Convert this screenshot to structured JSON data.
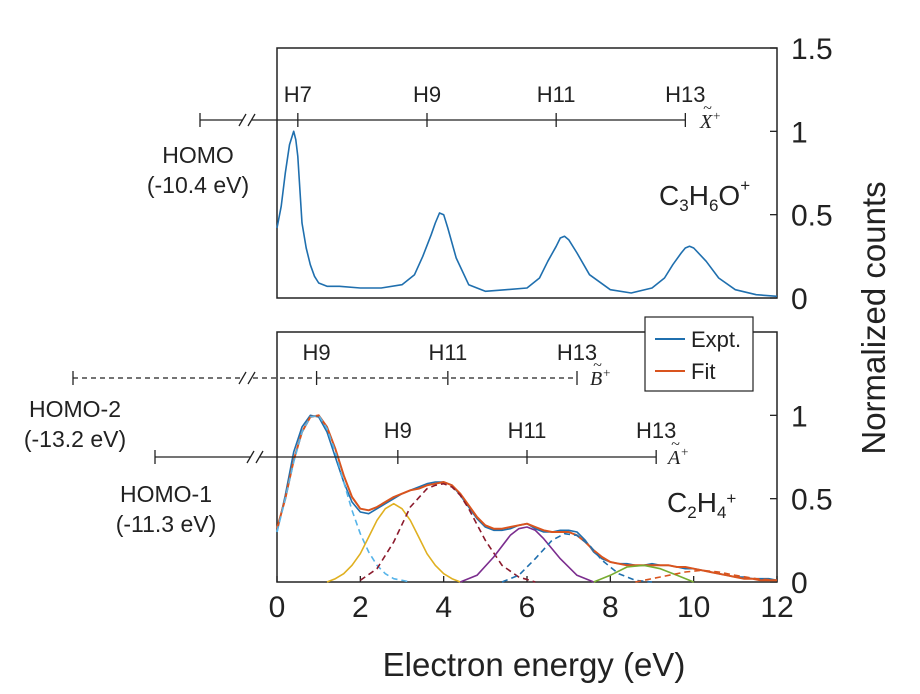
{
  "chart_data": [
    {
      "type": "line",
      "panel": "top",
      "molecule": "C3H6O+",
      "mol_parts": [
        "C",
        "3",
        "H",
        "6",
        "O",
        "+"
      ],
      "xlim": [
        0,
        12
      ],
      "ylim": [
        0,
        1.5
      ],
      "yticks": [
        "0",
        "0.5",
        "1",
        "1.5"
      ],
      "ylabel": "Normalized counts",
      "series": [
        {
          "color": "#1f6fae",
          "x": [
            0.0,
            0.1,
            0.2,
            0.3,
            0.4,
            0.45,
            0.5,
            0.55,
            0.6,
            0.7,
            0.8,
            0.9,
            1.0,
            1.2,
            1.5,
            2.0,
            2.5,
            3.0,
            3.3,
            3.5,
            3.7,
            3.8,
            3.9,
            4.0,
            4.1,
            4.3,
            4.6,
            5.0,
            5.5,
            6.0,
            6.3,
            6.5,
            6.7,
            6.8,
            6.9,
            7.0,
            7.2,
            7.5,
            8.0,
            8.5,
            9.0,
            9.3,
            9.5,
            9.7,
            9.8,
            9.9,
            10.0,
            10.3,
            10.6,
            11.0,
            11.5,
            12.0
          ],
          "y": [
            0.42,
            0.55,
            0.75,
            0.92,
            1.0,
            0.95,
            0.85,
            0.65,
            0.45,
            0.3,
            0.2,
            0.13,
            0.09,
            0.07,
            0.07,
            0.06,
            0.06,
            0.08,
            0.14,
            0.25,
            0.38,
            0.45,
            0.51,
            0.5,
            0.42,
            0.24,
            0.08,
            0.04,
            0.05,
            0.06,
            0.12,
            0.22,
            0.31,
            0.36,
            0.37,
            0.35,
            0.27,
            0.14,
            0.05,
            0.03,
            0.06,
            0.12,
            0.2,
            0.27,
            0.3,
            0.31,
            0.3,
            0.22,
            0.12,
            0.05,
            0.02,
            0.01
          ]
        }
      ],
      "harmonic_axes": [
        {
          "state": "X~+",
          "line": "solid",
          "ticks": [
            {
              "label": "H7",
              "x": 0.5
            },
            {
              "label": "H9",
              "x": 3.6
            },
            {
              "label": "H11",
              "x": 6.7
            },
            {
              "label": "H13",
              "x": 9.8
            }
          ],
          "orbital": "HOMO",
          "energy": "(-10.4 eV)",
          "state_glyph": "X",
          "state_sup": "+"
        }
      ]
    },
    {
      "type": "line",
      "panel": "bottom",
      "molecule": "C2H4+",
      "mol_parts": [
        "C",
        "2",
        "H",
        "4",
        "+"
      ],
      "xlim": [
        0,
        12
      ],
      "ylim": [
        0,
        1.5
      ],
      "xticks": [
        "0",
        "2",
        "4",
        "6",
        "8",
        "10",
        "12"
      ],
      "yticks": [
        "0",
        "0.5",
        "1"
      ],
      "xlabel": "Electron energy (eV)",
      "ylabel": "Normalized counts",
      "legend": {
        "position": "top-right",
        "entries": [
          "Expt.",
          "Fit"
        ]
      },
      "series": [
        {
          "name": "Expt.",
          "color": "#1f6fae",
          "x": [
            0.0,
            0.2,
            0.4,
            0.6,
            0.8,
            1.0,
            1.2,
            1.4,
            1.6,
            1.8,
            2.0,
            2.2,
            2.4,
            2.6,
            2.8,
            3.0,
            3.2,
            3.4,
            3.6,
            3.8,
            4.0,
            4.2,
            4.4,
            4.6,
            4.8,
            5.0,
            5.2,
            5.4,
            5.6,
            5.8,
            6.0,
            6.2,
            6.4,
            6.6,
            6.8,
            7.0,
            7.2,
            7.4,
            7.6,
            7.8,
            8.0,
            8.2,
            8.4,
            8.6,
            8.8,
            9.0,
            9.2,
            9.4,
            9.6,
            9.8,
            10.0,
            10.2,
            10.4,
            10.6,
            10.8,
            11.0,
            11.2,
            11.4,
            11.6,
            11.8,
            12.0
          ],
          "y": [
            0.3,
            0.52,
            0.78,
            0.93,
            1.0,
            0.99,
            0.9,
            0.75,
            0.6,
            0.48,
            0.42,
            0.41,
            0.44,
            0.47,
            0.5,
            0.53,
            0.55,
            0.57,
            0.59,
            0.6,
            0.6,
            0.58,
            0.52,
            0.45,
            0.38,
            0.33,
            0.31,
            0.31,
            0.32,
            0.34,
            0.35,
            0.32,
            0.3,
            0.3,
            0.31,
            0.31,
            0.3,
            0.25,
            0.18,
            0.14,
            0.12,
            0.11,
            0.11,
            0.1,
            0.1,
            0.11,
            0.1,
            0.1,
            0.09,
            0.08,
            0.08,
            0.07,
            0.06,
            0.05,
            0.04,
            0.03,
            0.03,
            0.02,
            0.02,
            0.02,
            0.01
          ]
        },
        {
          "name": "Fit",
          "color": "#d9541e",
          "x": [
            0.0,
            0.2,
            0.4,
            0.6,
            0.8,
            1.0,
            1.2,
            1.4,
            1.6,
            1.8,
            2.0,
            2.2,
            2.4,
            2.6,
            2.8,
            3.0,
            3.2,
            3.4,
            3.6,
            3.8,
            4.0,
            4.2,
            4.4,
            4.6,
            4.8,
            5.0,
            5.2,
            5.4,
            5.6,
            5.8,
            6.0,
            6.2,
            6.4,
            6.6,
            6.8,
            7.0,
            7.2,
            7.4,
            7.6,
            7.8,
            8.0,
            8.2,
            8.4,
            8.6,
            8.8,
            9.0,
            9.2,
            9.4,
            9.6,
            9.8,
            10.0,
            10.2,
            10.4,
            10.6,
            10.8,
            11.0,
            11.2,
            11.4,
            11.6,
            11.8,
            12.0
          ],
          "y": [
            0.32,
            0.5,
            0.73,
            0.9,
            0.99,
            1.0,
            0.93,
            0.8,
            0.64,
            0.51,
            0.44,
            0.43,
            0.45,
            0.48,
            0.51,
            0.53,
            0.55,
            0.56,
            0.58,
            0.59,
            0.6,
            0.58,
            0.53,
            0.46,
            0.39,
            0.34,
            0.32,
            0.32,
            0.33,
            0.34,
            0.35,
            0.33,
            0.31,
            0.3,
            0.3,
            0.3,
            0.28,
            0.24,
            0.19,
            0.15,
            0.12,
            0.11,
            0.1,
            0.1,
            0.1,
            0.1,
            0.1,
            0.1,
            0.09,
            0.09,
            0.08,
            0.07,
            0.06,
            0.05,
            0.04,
            0.03,
            0.02,
            0.02,
            0.01,
            0.01,
            0.01
          ]
        },
        {
          "color": "#56b4e9",
          "dash": "dashed",
          "x": [
            0.0,
            0.2,
            0.4,
            0.6,
            0.8,
            1.0,
            1.2,
            1.4,
            1.6,
            1.8,
            2.0,
            2.2,
            2.4,
            2.6,
            2.8,
            3.0,
            3.2
          ],
          "y": [
            0.3,
            0.5,
            0.72,
            0.9,
            0.99,
            1.0,
            0.92,
            0.78,
            0.6,
            0.43,
            0.29,
            0.18,
            0.1,
            0.05,
            0.02,
            0.01,
            0.0
          ]
        },
        {
          "color": "#e0b020",
          "x": [
            1.2,
            1.4,
            1.6,
            1.8,
            2.0,
            2.2,
            2.4,
            2.6,
            2.8,
            3.0,
            3.2,
            3.4,
            3.6,
            3.8,
            4.0,
            4.2,
            4.4
          ],
          "y": [
            0.0,
            0.02,
            0.05,
            0.1,
            0.17,
            0.27,
            0.37,
            0.44,
            0.47,
            0.44,
            0.37,
            0.27,
            0.17,
            0.1,
            0.05,
            0.02,
            0.0
          ]
        },
        {
          "color": "#8b1a2c",
          "dash": "dashed",
          "x": [
            2.0,
            2.4,
            2.8,
            3.2,
            3.6,
            3.8,
            4.0,
            4.2,
            4.4,
            4.6,
            5.0,
            5.4,
            5.8,
            6.2
          ],
          "y": [
            0.01,
            0.08,
            0.24,
            0.45,
            0.56,
            0.58,
            0.59,
            0.57,
            0.52,
            0.44,
            0.25,
            0.1,
            0.03,
            0.0
          ]
        },
        {
          "color": "#7b2d8e",
          "x": [
            4.4,
            4.8,
            5.2,
            5.6,
            5.8,
            6.0,
            6.2,
            6.4,
            6.8,
            7.2,
            7.6
          ],
          "y": [
            0.0,
            0.04,
            0.15,
            0.28,
            0.32,
            0.33,
            0.31,
            0.26,
            0.14,
            0.04,
            0.0
          ]
        },
        {
          "color": "#1f6fae",
          "dash": "dashed",
          "x": [
            5.4,
            5.8,
            6.2,
            6.6,
            6.9,
            7.2,
            7.5,
            7.8,
            8.2,
            8.6,
            9.0
          ],
          "y": [
            0.0,
            0.04,
            0.14,
            0.25,
            0.29,
            0.28,
            0.22,
            0.13,
            0.05,
            0.01,
            0.0
          ]
        },
        {
          "color": "#77ac30",
          "x": [
            7.6,
            8.0,
            8.4,
            8.8,
            9.2,
            9.6,
            10.0
          ],
          "y": [
            0.0,
            0.04,
            0.09,
            0.1,
            0.08,
            0.04,
            0.0
          ]
        },
        {
          "color": "#d9541e",
          "dash": "dashed",
          "x": [
            8.6,
            9.2,
            9.8,
            10.2,
            10.6,
            11.0,
            11.5,
            12.0
          ],
          "y": [
            0.0,
            0.03,
            0.06,
            0.07,
            0.06,
            0.04,
            0.02,
            0.01
          ]
        }
      ],
      "harmonic_axes": [
        {
          "state": "B~+",
          "line": "dashed",
          "ticks": [
            {
              "label": "H9",
              "x": 0.95
            },
            {
              "label": "H11",
              "x": 4.1
            },
            {
              "label": "H13",
              "x": 7.2
            }
          ],
          "orbital": "HOMO-2",
          "energy": "(-13.2 eV)",
          "state_glyph": "B",
          "state_sup": "+"
        },
        {
          "state": "A~+",
          "line": "solid",
          "ticks": [
            {
              "label": "H9",
              "x": 2.9
            },
            {
              "label": "H11",
              "x": 6.0
            },
            {
              "label": "H13",
              "x": 9.1
            }
          ],
          "orbital": "HOMO-1",
          "energy": "(-11.3 eV)",
          "state_glyph": "A",
          "state_sup": "+"
        }
      ]
    }
  ]
}
